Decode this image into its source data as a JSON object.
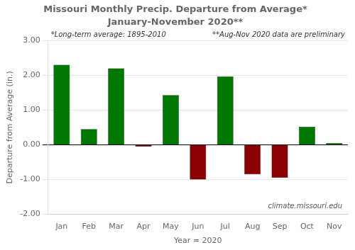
{
  "chart_data": {
    "type": "bar",
    "title": "Missouri Monthly Precip. Departure from Average*",
    "subtitle": "January-November 2020**",
    "xlabel": "Year = 2020",
    "ylabel": "Departure from Average (in.)",
    "categories": [
      "Jan",
      "Feb",
      "Mar",
      "Apr",
      "May",
      "Jun",
      "Jul",
      "Aug",
      "Sep",
      "Oct",
      "Nov"
    ],
    "values": [
      2.3,
      0.45,
      2.2,
      -0.05,
      1.43,
      -1.0,
      1.97,
      -0.85,
      -0.95,
      0.52,
      0.05
    ],
    "colors": [
      "#007700",
      "#007700",
      "#007700",
      "#8B0000",
      "#007700",
      "#8B0000",
      "#007700",
      "#8B0000",
      "#8B0000",
      "#007700",
      "#007700"
    ],
    "ylim": [
      -2.0,
      3.0
    ],
    "yticks": [
      {
        "value": -2.0,
        "label": "-2.00"
      },
      {
        "value": -1.0,
        "label": "-1.00"
      },
      {
        "value": 0.0,
        "label": "0.00"
      },
      {
        "value": 1.0,
        "label": "1.00"
      },
      {
        "value": 2.0,
        "label": "2.00"
      },
      {
        "value": 3.0,
        "label": "3.00"
      }
    ],
    "annotations": [
      "*Long-term average: 1895-2010",
      "**Aug-Nov 2020 data are preliminary",
      "climate.missouri.edu"
    ],
    "grid": true
  }
}
